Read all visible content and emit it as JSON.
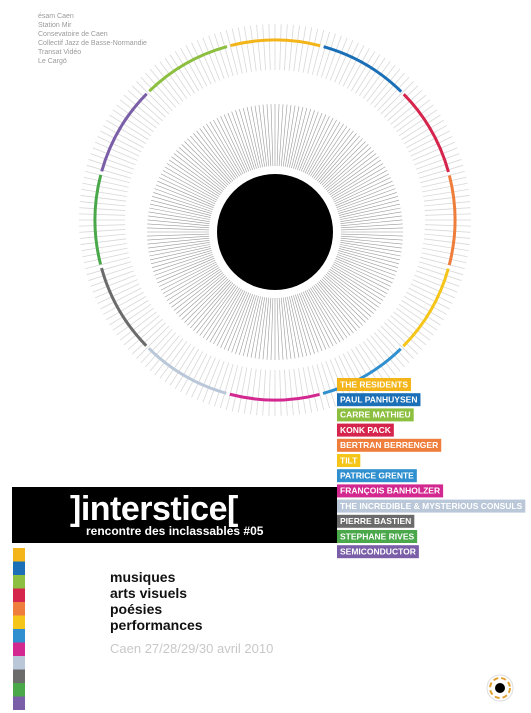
{
  "sponsors": [
    "ésam Caen",
    "Station Mir",
    "Consevatoire de Caen",
    "Collectif Jazz de Basse-Normandie",
    "Transat Vidéo",
    "Le Cargö"
  ],
  "title": "]interstice[",
  "subtitle": "rencontre des inclassables #05",
  "artists": [
    "THE RESIDENTS",
    "PAUL PANHUYSEN",
    "CARRE MATHIEU",
    "KONK PACK",
    "BERTRAN BERRENGER",
    "TILT",
    "PATRICE GRENTE",
    "FRANÇOIS BANHOLZER",
    "THE INCREDIBLE & MYSTERIOUS CONSULS",
    "PIERRE BASTIEN",
    "STEPHANE RIVES",
    "SEMICONDUCTOR"
  ],
  "disciplines": [
    "musiques",
    "arts visuels",
    "poésies",
    "performances"
  ],
  "dates": "Caen 27/28/29/30 avril 2010"
}
